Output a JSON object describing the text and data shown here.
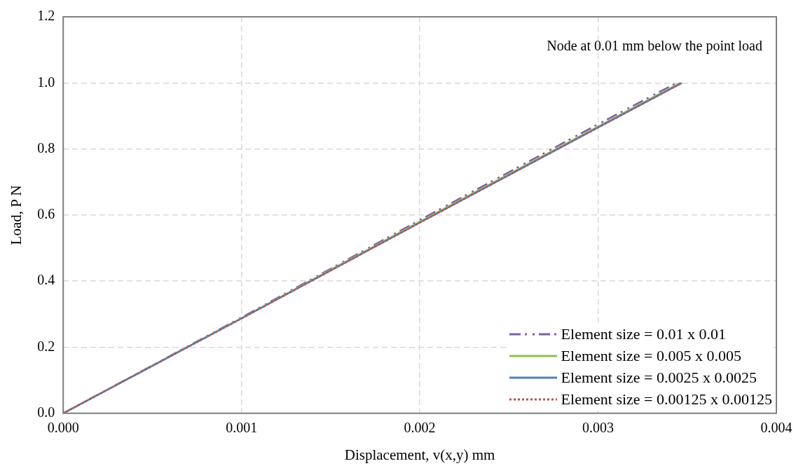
{
  "chart_data": {
    "type": "line",
    "xlabel": "Displacement, v(x,y) mm",
    "ylabel": "Load, P N",
    "annotations": [
      "Node at 0.01 mm below the point load"
    ],
    "xlim": [
      0,
      0.004
    ],
    "xticks": [
      {
        "value": 0,
        "label": "0.000"
      },
      0.001,
      0.002,
      0.003,
      {
        "value": 0.004,
        "label": "0.004"
      }
    ],
    "ylim": [
      0,
      1.2
    ],
    "yticks": [
      {
        "value": 0,
        "label": "0.0"
      },
      0.2,
      0.4,
      0.6,
      0.8,
      {
        "value": 1,
        "label": "1.0"
      },
      1.2
    ],
    "grid": true,
    "legend": "bottom right",
    "marker": "none",
    "series": [
      {
        "name": "Element size = 0.01 x 0.01",
        "color": "#7f5fa6",
        "line_style": "dashed",
        "x": [
          0,
          0.001,
          0.002,
          0.003,
          0.00344
        ],
        "values": [
          0,
          0.29,
          0.585,
          0.875,
          1.0
        ]
      },
      {
        "name": "Element size = 0.005 x 0.005",
        "color": "#93bf4f",
        "line_style": "solid",
        "x": [
          0,
          0.001,
          0.002,
          0.003,
          0.00346
        ],
        "values": [
          0,
          0.288,
          0.58,
          0.868,
          1.0
        ]
      },
      {
        "name": "Element size = 0.0025 x 0.0025",
        "color": "#4f81bd",
        "line_style": "solid",
        "x": [
          0,
          0.001,
          0.002,
          0.003,
          0.00347
        ],
        "values": [
          0,
          0.287,
          0.577,
          0.865,
          1.0
        ]
      },
      {
        "name": "Element size = 0.00125 x 0.00125",
        "color": "#c0504d",
        "line_style": "dotted",
        "x": [
          0,
          0.001,
          0.002,
          0.003,
          0.00347
        ],
        "values": [
          0,
          0.287,
          0.577,
          0.865,
          1.0
        ]
      }
    ]
  }
}
